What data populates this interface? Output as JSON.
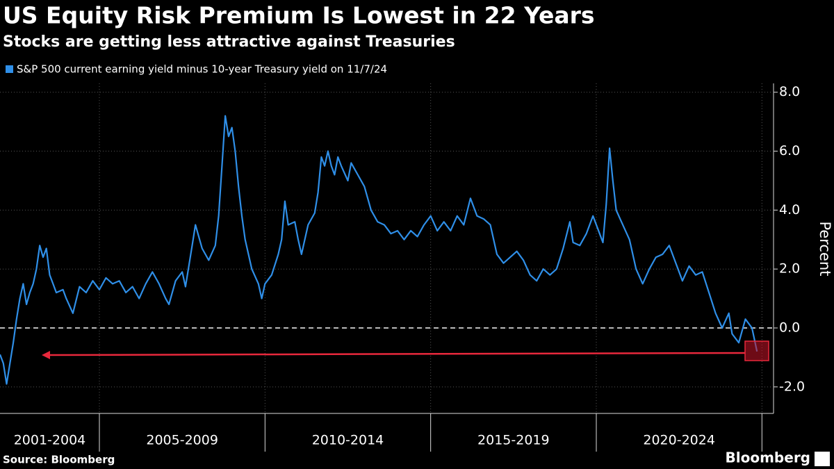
{
  "chart_data": {
    "type": "line",
    "title": "US Equity Risk Premium Is Lowest in 22 Years",
    "subtitle": "Stocks are getting less attractive against Treasuries",
    "y_label": "Percent",
    "source": "Source: Bloomberg",
    "brand": "Bloomberg",
    "x_groups": [
      {
        "label": "2001-2004",
        "start": 2002,
        "end": 2005
      },
      {
        "label": "2005-2009",
        "start": 2005,
        "end": 2010
      },
      {
        "label": "2010-2014",
        "start": 2010,
        "end": 2015
      },
      {
        "label": "2015-2019",
        "start": 2015,
        "end": 2020
      },
      {
        "label": "2020-2024",
        "start": 2020,
        "end": 2025
      }
    ],
    "xlim": [
      2002,
      2025.35
    ],
    "ylim": [
      -2.9,
      8.3
    ],
    "yticks": [
      {
        "value": 8,
        "label": "8.0"
      },
      {
        "value": 6,
        "label": "6.0"
      },
      {
        "value": 4,
        "label": "4.0"
      },
      {
        "value": 2,
        "label": "2.0"
      },
      {
        "value": 0,
        "label": "0.0"
      },
      {
        "value": -2,
        "label": "-2.0"
      }
    ],
    "reference_line": 0,
    "grid": true,
    "series": [
      {
        "name": "S&P 500 current earning yield minus 10-year Treasury yield on 11/7/24",
        "color": "#2f8fe8",
        "x": [
          2002.0,
          2002.1,
          2002.2,
          2002.3,
          2002.4,
          2002.5,
          2002.6,
          2002.7,
          2002.8,
          2002.9,
          2003.0,
          2003.1,
          2003.2,
          2003.3,
          2003.4,
          2003.5,
          2003.6,
          2003.7,
          2003.9,
          2004.0,
          2004.2,
          2004.4,
          2004.6,
          2004.8,
          2005.0,
          2005.2,
          2005.4,
          2005.6,
          2005.8,
          2006.0,
          2006.2,
          2006.4,
          2006.6,
          2006.8,
          2007.0,
          2007.1,
          2007.3,
          2007.5,
          2007.6,
          2007.8,
          2007.9,
          2008.1,
          2008.3,
          2008.5,
          2008.6,
          2008.7,
          2008.8,
          2008.9,
          2009.0,
          2009.1,
          2009.2,
          2009.3,
          2009.4,
          2009.6,
          2009.8,
          2009.9,
          2010.0,
          2010.2,
          2010.4,
          2010.5,
          2010.6,
          2010.7,
          2010.9,
          2011.0,
          2011.1,
          2011.3,
          2011.5,
          2011.6,
          2011.7,
          2011.8,
          2011.9,
          2012.0,
          2012.1,
          2012.2,
          2012.3,
          2012.5,
          2012.6,
          2012.8,
          2013.0,
          2013.2,
          2013.4,
          2013.6,
          2013.8,
          2014.0,
          2014.2,
          2014.4,
          2014.6,
          2014.8,
          2015.0,
          2015.2,
          2015.4,
          2015.6,
          2015.8,
          2016.0,
          2016.2,
          2016.4,
          2016.6,
          2016.8,
          2017.0,
          2017.2,
          2017.4,
          2017.6,
          2017.8,
          2018.0,
          2018.2,
          2018.4,
          2018.6,
          2018.8,
          2019.0,
          2019.2,
          2019.3,
          2019.5,
          2019.7,
          2019.9,
          2020.1,
          2020.2,
          2020.3,
          2020.4,
          2020.5,
          2020.6,
          2020.8,
          2021.0,
          2021.2,
          2021.4,
          2021.6,
          2021.8,
          2022.0,
          2022.2,
          2022.4,
          2022.6,
          2022.8,
          2023.0,
          2023.2,
          2023.4,
          2023.6,
          2023.8,
          2024.0,
          2024.1,
          2024.3,
          2024.5,
          2024.7,
          2024.85
        ],
        "values": [
          -0.9,
          -1.2,
          -1.9,
          -1.2,
          -0.5,
          0.3,
          1.0,
          1.5,
          0.8,
          1.2,
          1.5,
          2.0,
          2.8,
          2.4,
          2.7,
          1.8,
          1.5,
          1.2,
          1.3,
          1.0,
          0.5,
          1.4,
          1.2,
          1.6,
          1.3,
          1.7,
          1.5,
          1.6,
          1.2,
          1.4,
          1.0,
          1.5,
          1.9,
          1.5,
          1.0,
          0.8,
          1.6,
          1.9,
          1.4,
          2.8,
          3.5,
          2.7,
          2.3,
          2.8,
          3.8,
          5.5,
          7.2,
          6.5,
          6.8,
          6.0,
          4.8,
          3.8,
          3.0,
          2.0,
          1.5,
          1.0,
          1.5,
          1.8,
          2.5,
          3.0,
          4.3,
          3.5,
          3.6,
          3.0,
          2.5,
          3.5,
          3.9,
          4.6,
          5.8,
          5.5,
          6.0,
          5.5,
          5.2,
          5.8,
          5.5,
          5.0,
          5.6,
          5.2,
          4.8,
          4.0,
          3.6,
          3.5,
          3.2,
          3.3,
          3.0,
          3.3,
          3.1,
          3.5,
          3.8,
          3.3,
          3.6,
          3.3,
          3.8,
          3.5,
          4.4,
          3.8,
          3.7,
          3.5,
          2.5,
          2.2,
          2.4,
          2.6,
          2.3,
          1.8,
          1.6,
          2.0,
          1.8,
          2.0,
          2.7,
          3.6,
          2.9,
          2.8,
          3.2,
          3.8,
          3.2,
          2.9,
          4.2,
          6.1,
          5.0,
          4.0,
          3.5,
          3.0,
          2.0,
          1.5,
          2.0,
          2.4,
          2.5,
          2.8,
          2.2,
          1.6,
          2.1,
          1.8,
          1.9,
          1.2,
          0.5,
          0.0,
          0.5,
          -0.2,
          -0.5,
          0.3,
          0.0,
          -0.8
        ]
      }
    ]
  }
}
